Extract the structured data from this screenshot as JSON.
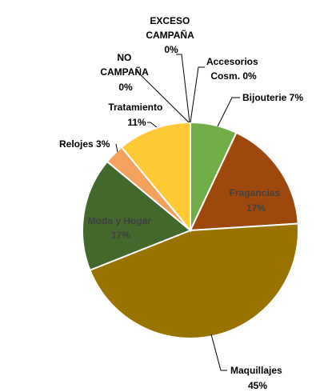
{
  "chart_data": {
    "type": "pie",
    "title": "",
    "legend": "none",
    "slices": [
      {
        "name": "Accesorios Cosm.",
        "value": 0,
        "pct_label": "0%",
        "color": "#7FA64A"
      },
      {
        "name": "Bijouterie",
        "value": 7,
        "pct_label": "7%",
        "color": "#70AD47"
      },
      {
        "name": "Fragancias",
        "value": 17,
        "pct_label": "17%",
        "color": "#9E480E"
      },
      {
        "name": "Maquillajes",
        "value": 45,
        "pct_label": "45%",
        "color": "#997300"
      },
      {
        "name": "Moda y Hogar",
        "value": 17,
        "pct_label": "17%",
        "color": "#43682B"
      },
      {
        "name": "Relojes",
        "value": 3,
        "pct_label": "3%",
        "color": "#F4A15D"
      },
      {
        "name": "Tratamiento",
        "value": 11,
        "pct_label": "11%",
        "color": "#FFC935"
      },
      {
        "name": "NO CAMPAÑA",
        "value": 0,
        "pct_label": "0%",
        "color": "#C9C9C9"
      },
      {
        "name": "EXCESO CAMPAÑA",
        "value": 0,
        "pct_label": "0%",
        "color": "#A5A5A5"
      }
    ],
    "label_texts": {
      "accesorios": [
        "Accesorios",
        "Cosm. 0%"
      ],
      "bijouterie": [
        "Bijouterie 7%"
      ],
      "fragancias": [
        "Fragancias",
        "17%"
      ],
      "maquillajes": [
        "Maquillajes",
        "45%"
      ],
      "moda": [
        "Moda y Hogar",
        "17%"
      ],
      "relojes": [
        "Relojes 3%"
      ],
      "tratamiento": [
        "Tratamiento",
        "11%"
      ],
      "no_campana": [
        "NO",
        "CAMPAÑA",
        "0%"
      ],
      "exceso": [
        "EXCESO",
        "CAMPAÑA",
        "0%"
      ]
    }
  }
}
